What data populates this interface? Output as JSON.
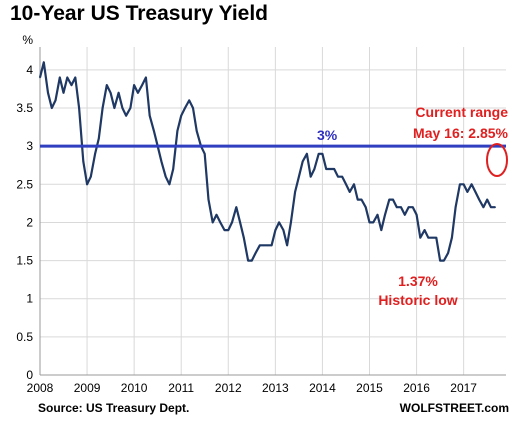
{
  "chart_data": {
    "type": "line",
    "title": "10-Year US Treasury Yield",
    "ylabel": "%",
    "xlabel": "",
    "xlim": [
      2008,
      2017.9
    ],
    "ylim": [
      0,
      4.3
    ],
    "xticks": [
      "2008",
      "2009",
      "2010",
      "2011",
      "2012",
      "2013",
      "2014",
      "2015",
      "2016",
      "2017"
    ],
    "yticks": [
      "0",
      "0.5",
      "1",
      "1.5",
      "2",
      "2.5",
      "3",
      "3.5",
      "4"
    ],
    "grid": true,
    "series": [
      {
        "name": "",
        "color": "#1f3864",
        "x": [
          2008.0,
          2008.08,
          2008.17,
          2008.25,
          2008.33,
          2008.42,
          2008.5,
          2008.58,
          2008.67,
          2008.75,
          2008.83,
          2008.92,
          2009.0,
          2009.08,
          2009.17,
          2009.25,
          2009.33,
          2009.42,
          2009.5,
          2009.58,
          2009.67,
          2009.75,
          2009.83,
          2009.92,
          2010.0,
          2010.08,
          2010.17,
          2010.25,
          2010.33,
          2010.42,
          2010.5,
          2010.58,
          2010.67,
          2010.75,
          2010.83,
          2010.92,
          2011.0,
          2011.08,
          2011.17,
          2011.25,
          2011.33,
          2011.42,
          2011.5,
          2011.58,
          2011.67,
          2011.75,
          2011.83,
          2011.92,
          2012.0,
          2012.08,
          2012.17,
          2012.25,
          2012.33,
          2012.42,
          2012.5,
          2012.58,
          2012.67,
          2012.75,
          2012.83,
          2012.92,
          2013.0,
          2013.08,
          2013.17,
          2013.25,
          2013.33,
          2013.42,
          2013.5,
          2013.58,
          2013.67,
          2013.75,
          2013.83,
          2013.92,
          2014.0,
          2014.08,
          2014.17,
          2014.25,
          2014.33,
          2014.42,
          2014.5,
          2014.58,
          2014.67,
          2014.75,
          2014.83,
          2014.92,
          2015.0,
          2015.08,
          2015.17,
          2015.25,
          2015.33,
          2015.42,
          2015.5,
          2015.58,
          2015.67,
          2015.75,
          2015.83,
          2015.92,
          2016.0,
          2016.08,
          2016.17,
          2016.25,
          2016.33,
          2016.42,
          2016.5,
          2016.58,
          2016.67,
          2016.75,
          2016.83,
          2016.92,
          2017.0,
          2017.08,
          2017.17,
          2017.25,
          2017.33,
          2017.42,
          2017.5,
          2017.58,
          2017.67
        ],
        "y": [
          3.9,
          4.1,
          3.7,
          3.5,
          3.6,
          3.9,
          3.7,
          3.9,
          3.8,
          3.9,
          3.5,
          2.8,
          2.5,
          2.6,
          2.9,
          3.1,
          3.5,
          3.8,
          3.7,
          3.5,
          3.7,
          3.5,
          3.4,
          3.5,
          3.8,
          3.7,
          3.8,
          3.9,
          3.4,
          3.2,
          3.0,
          2.8,
          2.6,
          2.5,
          2.7,
          3.2,
          3.4,
          3.5,
          3.6,
          3.5,
          3.2,
          3.0,
          2.9,
          2.3,
          2.0,
          2.1,
          2.0,
          1.9,
          1.9,
          2.0,
          2.2,
          2.0,
          1.8,
          1.5,
          1.5,
          1.6,
          1.7,
          1.7,
          1.7,
          1.7,
          1.9,
          2.0,
          1.9,
          1.7,
          2.0,
          2.4,
          2.6,
          2.8,
          2.9,
          2.6,
          2.7,
          2.9,
          2.9,
          2.7,
          2.7,
          2.7,
          2.6,
          2.6,
          2.5,
          2.4,
          2.5,
          2.3,
          2.3,
          2.2,
          2.0,
          2.0,
          2.1,
          1.9,
          2.1,
          2.3,
          2.3,
          2.2,
          2.2,
          2.1,
          2.2,
          2.2,
          2.1,
          1.8,
          1.9,
          1.8,
          1.8,
          1.8,
          1.5,
          1.5,
          1.6,
          1.8,
          2.2,
          2.5,
          2.5,
          2.4,
          2.5,
          2.4,
          2.3,
          2.2,
          2.3,
          2.2,
          2.2
        ]
      }
    ],
    "annotations": {
      "reference_line": {
        "value": 3,
        "label": "3%",
        "color": "#2f3fbf"
      },
      "current_range": {
        "line1": "Current range",
        "line2": "May 16: 2.85%",
        "color": "#e02020"
      },
      "historic_low": {
        "line1": "1.37%",
        "line2": "Historic low",
        "color": "#e02020",
        "x": 2016.5,
        "y": 1.37
      }
    },
    "source": "Source: US Treasury Dept.",
    "credit": "WOLFSTREET.com"
  }
}
